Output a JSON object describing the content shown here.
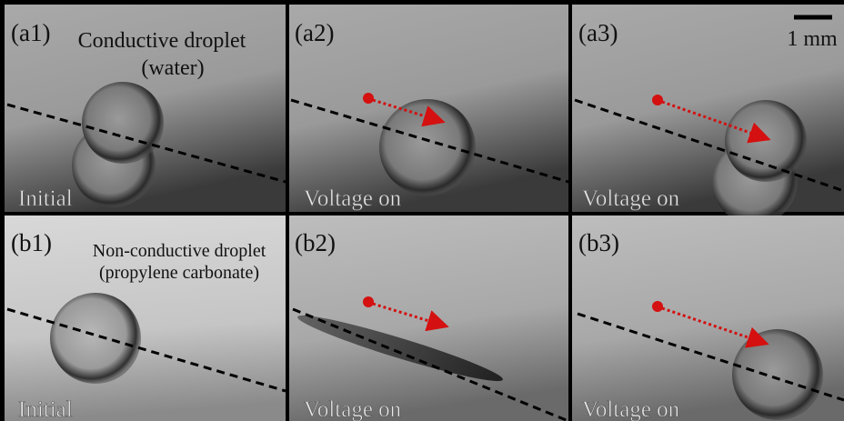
{
  "panels": [
    {
      "label": "(a1)",
      "caption": "Initial",
      "note": [
        "Conductive droplet",
        "(water)"
      ]
    },
    {
      "label": "(a2)",
      "caption": "Voltage on"
    },
    {
      "label": "(a3)",
      "caption": "Voltage on",
      "scale_bar": "1 mm"
    },
    {
      "label": "(b1)",
      "caption": "Initial",
      "note": [
        "Non-conductive droplet",
        "(propylene carbonate)"
      ]
    },
    {
      "label": "(b2)",
      "caption": "Voltage on"
    },
    {
      "label": "(b3)",
      "caption": "Voltage on"
    }
  ]
}
